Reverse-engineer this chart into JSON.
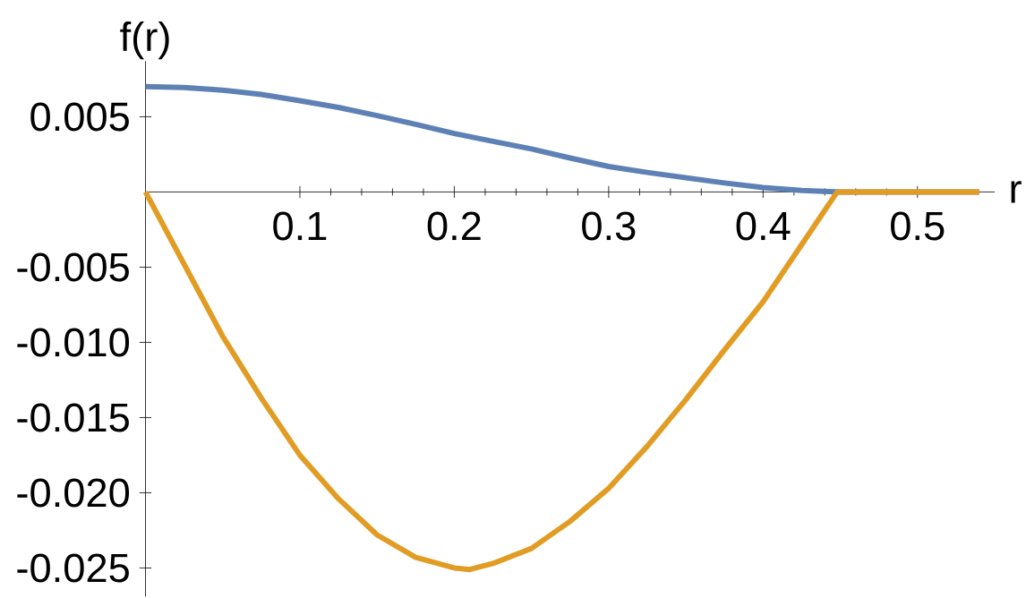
{
  "chart_data": {
    "type": "line",
    "xlabel": "r",
    "ylabel": "f(r)",
    "xlim": [
      0,
      0.55
    ],
    "ylim": [
      -0.0269,
      0.0087
    ],
    "xticks": [
      0.1,
      0.2,
      0.3,
      0.4,
      0.5
    ],
    "yticks": [
      {
        "value": 0.005,
        "label": "0.005"
      },
      {
        "value": -0.005,
        "label": "-0.005"
      },
      {
        "value": -0.01,
        "label": "-0.010"
      },
      {
        "value": -0.015,
        "label": "-0.015"
      },
      {
        "value": -0.02,
        "label": "-0.020"
      },
      {
        "value": -0.025,
        "label": "-0.025"
      }
    ],
    "marker": "none",
    "line_style": "solid",
    "series": [
      {
        "color": "#5e81b5",
        "x": [
          0,
          0.025,
          0.05,
          0.075,
          0.1,
          0.125,
          0.15,
          0.175,
          0.2,
          0.225,
          0.25,
          0.275,
          0.3,
          0.325,
          0.35,
          0.375,
          0.4,
          0.425,
          0.45,
          0.54
        ],
        "values": [
          0.007,
          0.00695,
          0.00677,
          0.00648,
          0.00607,
          0.00562,
          0.00508,
          0.0045,
          0.00389,
          0.00337,
          0.00286,
          0.00226,
          0.00169,
          0.0013,
          0.00095,
          0.0006,
          0.00029,
          0.0001,
          0,
          0
        ]
      },
      {
        "color": "#e19c24",
        "x": [
          0,
          0.025,
          0.05,
          0.075,
          0.1,
          0.125,
          0.15,
          0.175,
          0.2,
          0.21,
          0.225,
          0.25,
          0.275,
          0.3,
          0.325,
          0.35,
          0.375,
          0.4,
          0.425,
          0.448,
          0.54
        ],
        "values": [
          0,
          -0.0048,
          -0.0096,
          -0.0137,
          -0.0175,
          -0.0204,
          -0.0228,
          -0.0243,
          -0.025,
          -0.0251,
          -0.0247,
          -0.0237,
          -0.0219,
          -0.0197,
          -0.0169,
          -0.0138,
          -0.0105,
          -0.0073,
          -0.0035,
          0,
          0
        ]
      }
    ]
  }
}
